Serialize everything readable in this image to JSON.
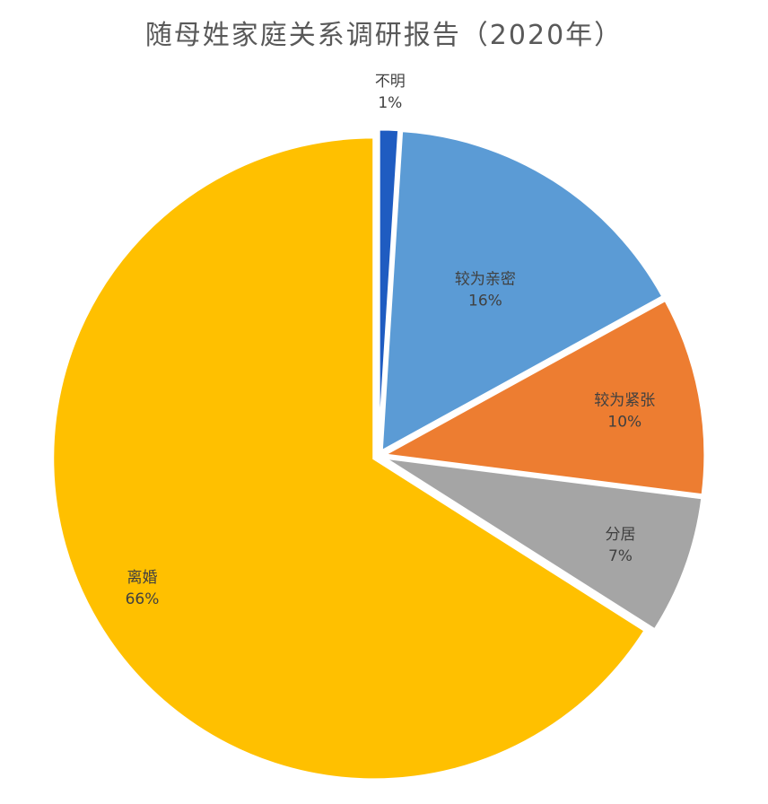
{
  "chart_data": {
    "type": "pie",
    "title": "随母姓家庭关系调研报告（2020年）",
    "slices": [
      {
        "label": "不明",
        "value": 1,
        "value_label": "1%",
        "color": "#1F5CC1"
      },
      {
        "label": "较为亲密",
        "value": 16,
        "value_label": "16%",
        "color": "#5B9BD5"
      },
      {
        "label": "较为紧张",
        "value": 10,
        "value_label": "10%",
        "color": "#ED7D31"
      },
      {
        "label": "分居",
        "value": 7,
        "value_label": "7%",
        "color": "#A5A5A5"
      },
      {
        "label": "离婚",
        "value": 66,
        "value_label": "66%",
        "color": "#FFC000"
      }
    ],
    "start_angle_deg": 0,
    "direction": "clockwise",
    "legend": "none",
    "exploded": true
  }
}
